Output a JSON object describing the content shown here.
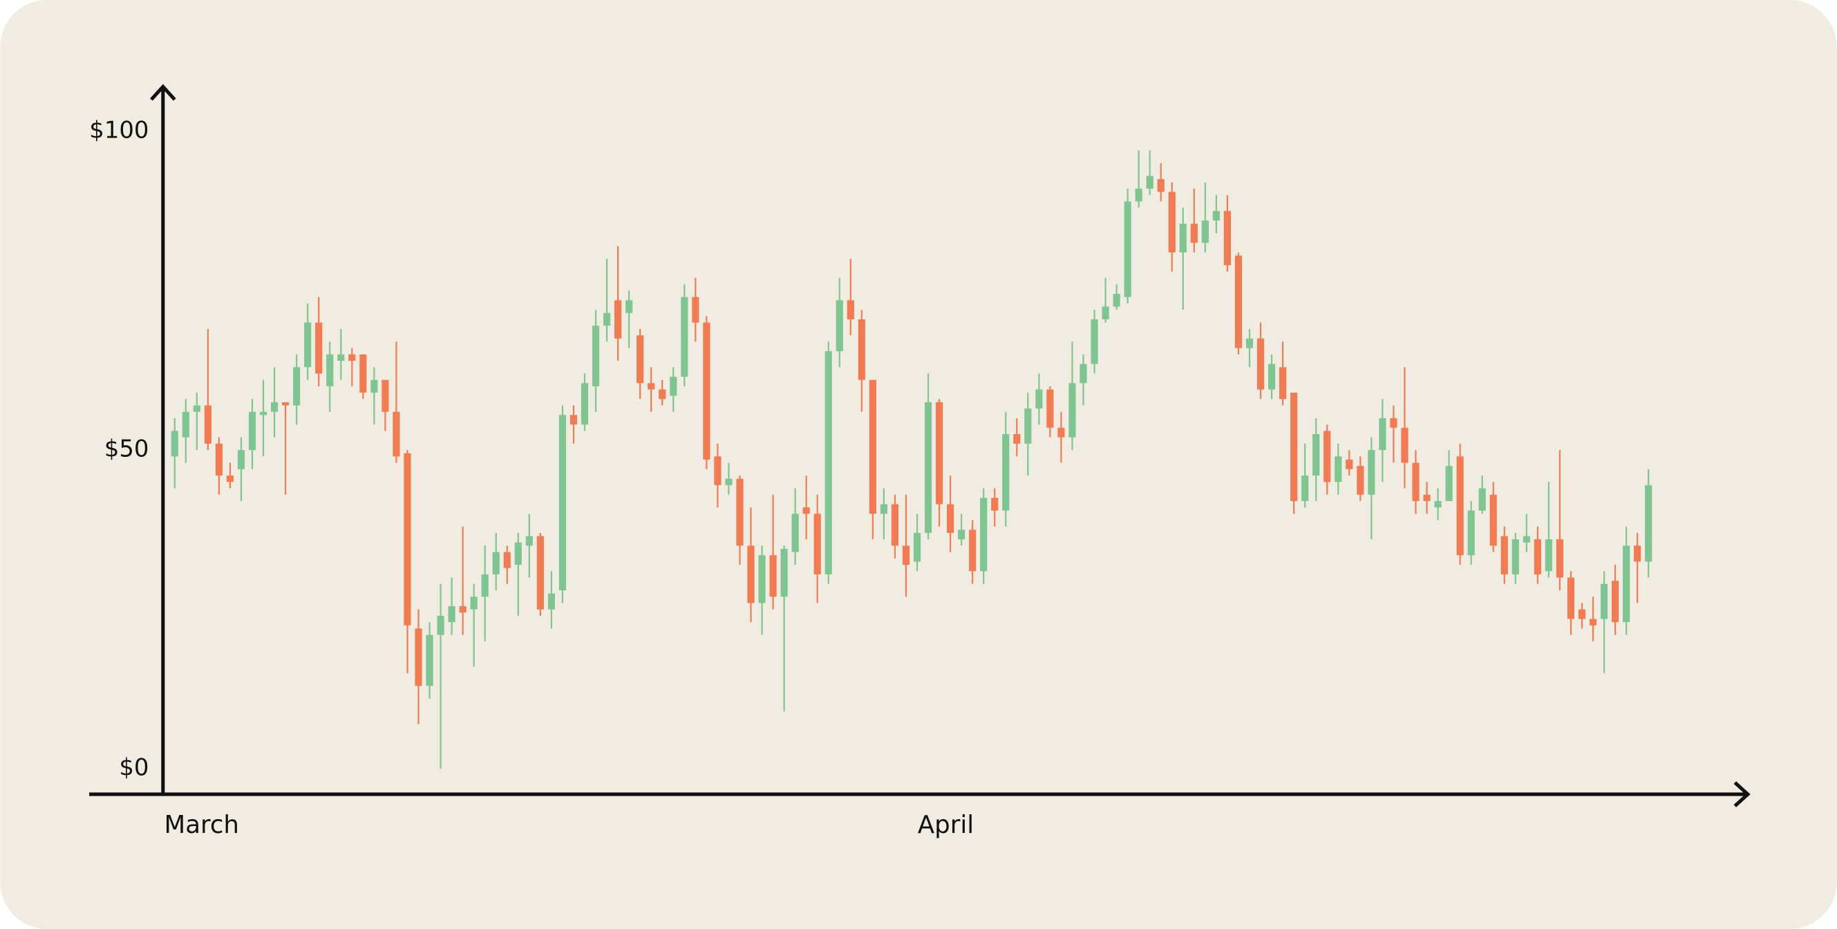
{
  "chart_data": {
    "type": "candlestick",
    "categories": [
      "March",
      null,
      null,
      null,
      null,
      null,
      null,
      null,
      null,
      null,
      null,
      null,
      null,
      null,
      null,
      null,
      null,
      null,
      null,
      null,
      null,
      null,
      null,
      null,
      null,
      null,
      null,
      null,
      null,
      null,
      null,
      null,
      null,
      null,
      null,
      null,
      null,
      null,
      null,
      null,
      null,
      null,
      null,
      null,
      null,
      null,
      null,
      null,
      null,
      null,
      null,
      null,
      null,
      null,
      null,
      null,
      null,
      null,
      null,
      null,
      null,
      null,
      null,
      null,
      null,
      null,
      null,
      null,
      "April",
      null,
      null,
      null,
      null,
      null,
      null,
      null,
      null,
      null,
      null,
      null,
      null,
      null,
      null,
      null,
      null,
      null,
      null,
      null,
      null,
      null,
      null,
      null,
      null,
      null,
      null,
      null,
      null,
      null,
      null,
      null,
      null,
      null,
      null,
      null,
      null,
      null,
      null,
      null,
      null,
      null,
      null,
      null,
      null,
      null,
      null,
      null,
      null,
      null,
      null,
      null,
      null,
      null,
      null,
      null,
      null,
      null,
      null,
      null,
      null,
      null,
      null,
      null,
      null,
      null
    ],
    "open": [
      49,
      52,
      56,
      57,
      51,
      46,
      47,
      50,
      55.5,
      56,
      57.5,
      57,
      63,
      70,
      60,
      64,
      65,
      65,
      59,
      61,
      56,
      49.5,
      22,
      13,
      21,
      23,
      25.5,
      25,
      27,
      30.5,
      34,
      32,
      35,
      36.5,
      25,
      28,
      55.5,
      54,
      60,
      69.5,
      73.5,
      71.5,
      68,
      60.5,
      59.5,
      58.5,
      61.5,
      74,
      70,
      49,
      44.5,
      45.5,
      35,
      26,
      33.5,
      27,
      34,
      41,
      40,
      30.5,
      65.5,
      73.5,
      70.5,
      61,
      40,
      41.5,
      35,
      32.5,
      37,
      57.5,
      41.5,
      36,
      37.5,
      31,
      42.5,
      40.5,
      52.5,
      51,
      56.5,
      59.5,
      53.5,
      52,
      60.5,
      63.5,
      70.5,
      72.5,
      74,
      89,
      91,
      92.5,
      90.5,
      81,
      85.5,
      82.5,
      86,
      87.5,
      80.5,
      66,
      67.5,
      59.5,
      63,
      59,
      42,
      46,
      53,
      45,
      48.5,
      47.5,
      43,
      50,
      55,
      53.5,
      48,
      43,
      41,
      42,
      49,
      33.5,
      40.5,
      43,
      36.5,
      30.5,
      35.5,
      36,
      31,
      36,
      30,
      25,
      23.5,
      23.5,
      29.5,
      23,
      35,
      32.5
    ],
    "high": [
      55,
      58,
      59,
      69,
      52,
      48,
      52,
      58,
      61,
      63,
      57.5,
      65,
      73,
      74,
      67,
      69,
      66,
      65,
      63,
      61,
      67,
      50,
      25,
      23,
      29,
      30,
      38,
      29,
      35,
      37,
      35,
      37,
      40,
      37,
      31,
      57,
      57,
      62,
      72,
      80,
      82,
      75,
      69,
      63,
      61,
      63,
      76,
      77,
      71,
      51,
      48,
      46,
      41,
      35,
      43,
      35,
      44,
      46,
      43,
      67,
      77,
      80,
      72,
      61,
      44,
      43,
      43,
      40,
      62,
      58,
      46,
      40,
      39,
      44,
      44,
      56,
      55,
      59,
      62,
      60,
      56,
      67,
      65,
      72,
      77,
      76,
      91,
      97,
      97,
      95,
      92,
      88,
      91,
      92,
      90,
      90,
      81,
      69,
      70,
      65,
      67,
      59,
      51,
      55,
      54,
      51,
      50,
      49,
      52,
      58,
      57,
      63,
      50,
      45,
      44,
      50,
      51,
      42,
      46,
      45,
      38,
      37,
      40,
      38,
      45,
      50,
      31,
      26,
      27,
      31,
      32,
      38,
      37,
      47
    ],
    "low": [
      44,
      48,
      50,
      50,
      43,
      44,
      42,
      47,
      49,
      52,
      43,
      54,
      61,
      60,
      56,
      61,
      60,
      58,
      54,
      53,
      48,
      15,
      7,
      11,
      0,
      21,
      21,
      16,
      20,
      28,
      29,
      24,
      30,
      24,
      22,
      26,
      51,
      53,
      56,
      67,
      64,
      66,
      58,
      56,
      57,
      56,
      60,
      67,
      47,
      41,
      43,
      32,
      23,
      21,
      25,
      9,
      32,
      36,
      26,
      29,
      63,
      68,
      56,
      36,
      36,
      33,
      27,
      31,
      36,
      38,
      34,
      35,
      29,
      29,
      38,
      38,
      49,
      46,
      54,
      52,
      48,
      50,
      57,
      62,
      70,
      72,
      73,
      88,
      90,
      89,
      78,
      72,
      81,
      81,
      84,
      78,
      65,
      63,
      58,
      58,
      57,
      40,
      41,
      42,
      43,
      43,
      46,
      42,
      36,
      45,
      48,
      44,
      40,
      40,
      39,
      42,
      32,
      32,
      40,
      34,
      29,
      29,
      34,
      29,
      30,
      28,
      21,
      22,
      20,
      15,
      21,
      21,
      26,
      30
    ],
    "close": [
      53,
      56,
      57,
      51,
      46,
      45,
      50,
      56,
      56,
      57.5,
      57,
      63,
      70,
      62,
      65,
      65,
      64,
      59,
      61,
      56,
      49,
      22.5,
      13,
      21,
      24,
      25.5,
      24.5,
      27,
      30.5,
      34,
      31.5,
      35.5,
      36.5,
      25,
      27.5,
      55.5,
      54,
      60.5,
      69.5,
      71.5,
      67.5,
      73.5,
      60.5,
      59.5,
      58,
      61.5,
      74,
      70,
      48.5,
      44.5,
      45.5,
      35,
      26,
      33.5,
      27,
      34.5,
      40,
      40,
      30.5,
      65.5,
      73.5,
      70.5,
      61,
      40,
      41.5,
      35,
      32,
      37,
      57.5,
      41.5,
      37,
      37.5,
      31,
      42.5,
      40.5,
      52.5,
      51,
      56.5,
      59.5,
      53.5,
      52,
      60.5,
      63.5,
      70.5,
      72.5,
      74.5,
      89,
      91,
      93,
      90.5,
      81,
      85.5,
      82.5,
      86,
      87.5,
      79,
      66,
      67.5,
      59.5,
      63.5,
      58,
      42,
      46,
      52.5,
      45,
      49,
      47,
      43,
      50,
      55,
      53.5,
      48,
      42,
      42,
      42,
      47.5,
      33.5,
      40.5,
      44,
      35,
      30.5,
      36,
      36.5,
      30.5,
      36,
      30,
      23.5,
      23.5,
      22.5,
      29,
      23,
      35,
      32.5,
      44.5
    ],
    "up_color": "#7ec591",
    "down_color": "#f27b52",
    "ylim": [
      -4,
      107
    ],
    "yticks": [
      {
        "value": 0,
        "label": "$0"
      },
      {
        "value": 50,
        "label": "$50"
      },
      {
        "value": 100,
        "label": "$100"
      }
    ]
  }
}
